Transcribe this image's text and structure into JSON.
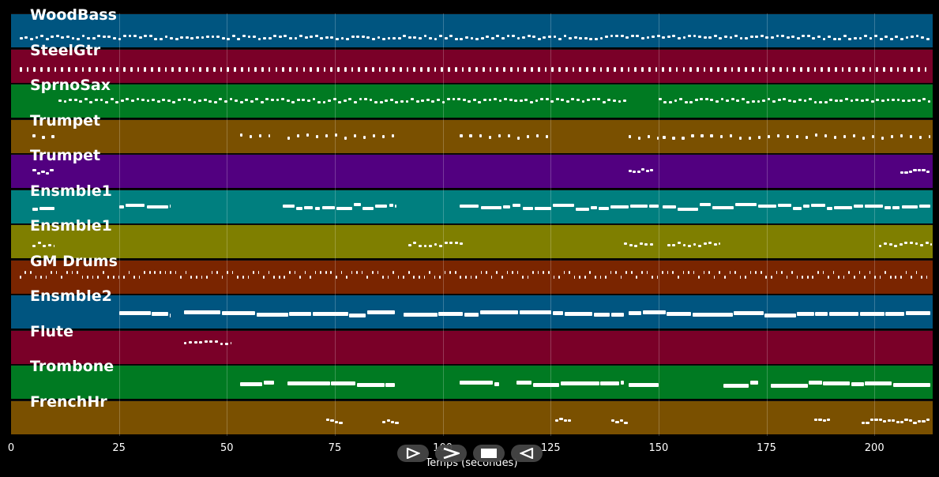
{
  "tracks": [
    {
      "name": "WoodBass",
      "color": "#005580"
    },
    {
      "name": "SteelGtr",
      "color": "#7a0028"
    },
    {
      "name": "SprnoSax",
      "color": "#007a22"
    },
    {
      "name": "Trumpet",
      "color": "#7a5000"
    },
    {
      "name": "Trumpet",
      "color": "#520080"
    },
    {
      "name": "Ensmble1",
      "color": "#007f7f"
    },
    {
      "name": "Ensmble1",
      "color": "#7f7f00"
    },
    {
      "name": "GM Drums",
      "color": "#7a2500"
    },
    {
      "name": "Ensmble2",
      "color": "#005580"
    },
    {
      "name": "Flute",
      "color": "#7a0028"
    },
    {
      "name": "Trombone",
      "color": "#007a22"
    },
    {
      "name": "FrenchHr",
      "color": "#7a5000"
    }
  ],
  "axis": {
    "ticks": [
      "0",
      "25",
      "50",
      "75",
      "100",
      "125",
      "150",
      "175",
      "200"
    ],
    "label": "Temps (secondes)",
    "range": [
      0,
      213.5
    ]
  },
  "controls": [
    {
      "name": "play-icon"
    },
    {
      "name": "fast-forward-icon"
    },
    {
      "name": "stop-icon"
    },
    {
      "name": "rewind-icon"
    }
  ]
}
